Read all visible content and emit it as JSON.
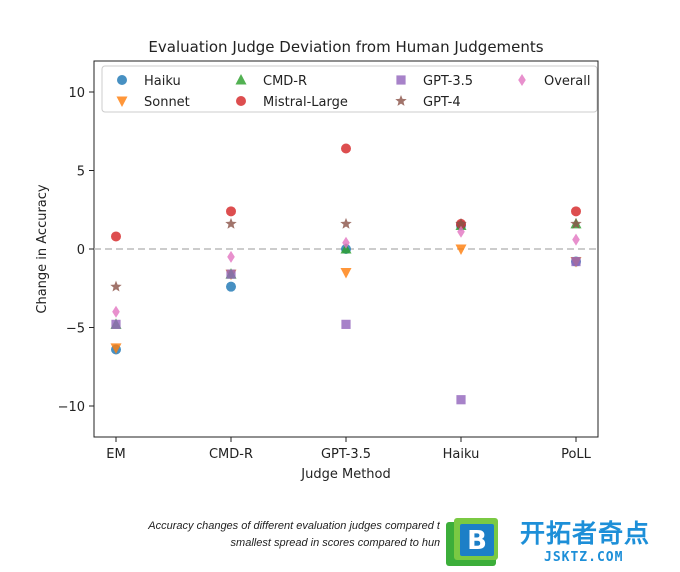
{
  "chart_data": {
    "type": "scatter",
    "title": "Evaluation Judge Deviation from Human Judgements",
    "xlabel": "Judge Method",
    "ylabel": "Change in Accuracy",
    "categories": [
      "EM",
      "CMD-R",
      "GPT-3.5",
      "Haiku",
      "PoLL"
    ],
    "ylim": [
      -12,
      12
    ],
    "yticks": [
      10,
      5,
      0,
      -5,
      -10
    ],
    "reference_line": {
      "y": 0,
      "style": "dashed",
      "color": "#bbbbbb"
    },
    "legend_placement": "top",
    "series": [
      {
        "name": "Haiku",
        "marker": "circle",
        "color": "#1f77b4",
        "values": [
          -6.4,
          -2.4,
          0.0,
          1.5,
          -0.8
        ]
      },
      {
        "name": "Sonnet",
        "marker": "triangle-down",
        "color": "#ff7f0e",
        "values": [
          -6.3,
          -1.6,
          -1.5,
          0.0,
          -0.8
        ]
      },
      {
        "name": "CMD-R",
        "marker": "triangle-up",
        "color": "#2ca02c",
        "values": [
          -4.8,
          -1.6,
          0.0,
          1.5,
          1.6
        ]
      },
      {
        "name": "Mistral-Large",
        "marker": "circle",
        "color": "#d62728",
        "values": [
          0.8,
          2.4,
          6.4,
          1.6,
          2.4
        ]
      },
      {
        "name": "GPT-3.5",
        "marker": "square",
        "color": "#9467bd",
        "values": [
          -4.8,
          -1.6,
          -4.8,
          -9.6,
          -0.8
        ]
      },
      {
        "name": "GPT-4",
        "marker": "star",
        "color": "#8c564b",
        "values": [
          -2.4,
          1.6,
          1.6,
          1.6,
          1.6
        ]
      },
      {
        "name": "Overall",
        "marker": "thin-diamond",
        "color": "#e377c2",
        "values": [
          -4.0,
          -0.5,
          0.4,
          1.1,
          0.6
        ]
      }
    ]
  },
  "caption": {
    "line1": "Accuracy changes of different evaluation judges compared to human judges. P",
    "line2": "smallest spread in scores compared to huma"
  },
  "watermark": {
    "title": "开拓者奇点",
    "subtitle": "JSKTZ.COM",
    "logo_letter": "B"
  }
}
